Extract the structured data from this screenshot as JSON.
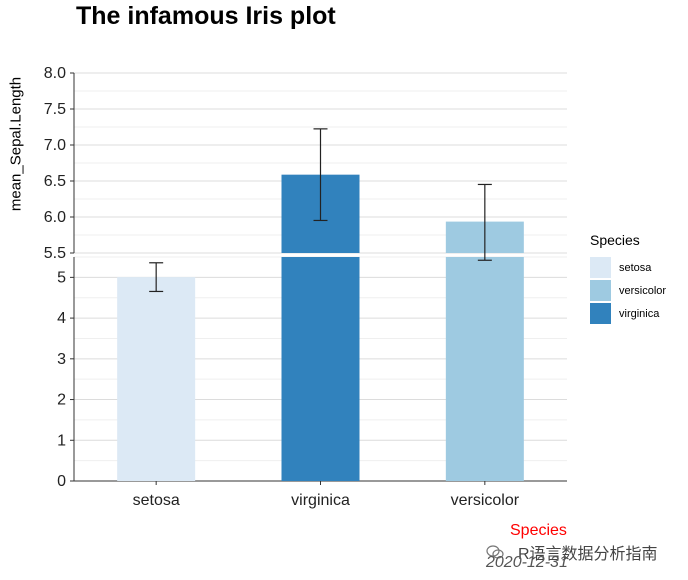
{
  "chart_data": {
    "type": "bar",
    "title": "The infamous Iris plot",
    "ylabel": "mean_Sepal.Length",
    "xlabel": "",
    "categories": [
      "setosa",
      "virginica",
      "versicolor"
    ],
    "values": [
      5.006,
      6.588,
      5.936
    ],
    "error_low": [
      4.654,
      5.952,
      5.42
    ],
    "error_high": [
      5.358,
      7.224,
      6.452
    ],
    "colors": [
      "#dce9f5",
      "#3182bd",
      "#9ecae1"
    ],
    "axis_break": 5.5,
    "upper_ylim": [
      5.5,
      8.0
    ],
    "upper_ticks": [
      "5.5",
      "6.0",
      "6.5",
      "7.0",
      "7.5",
      "8.0"
    ],
    "lower_ylim": [
      0,
      5.5
    ],
    "lower_ticks": [
      "0",
      "1",
      "2",
      "3",
      "4",
      "5"
    ],
    "legend": {
      "title": "Species",
      "items": [
        {
          "label": "setosa",
          "color": "#dce9f5"
        },
        {
          "label": "versicolor",
          "color": "#9ecae1"
        },
        {
          "label": "virginica",
          "color": "#3182bd"
        }
      ]
    },
    "grid": true
  },
  "caption": {
    "species": "Species",
    "watermark": "R语言数据分析指南",
    "date": "2020-12-31"
  }
}
